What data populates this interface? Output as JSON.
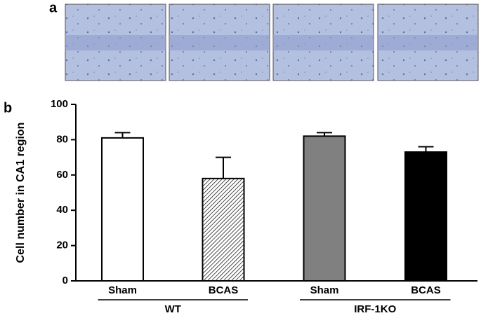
{
  "panel_labels": [
    "a",
    "b"
  ],
  "chart_data": {
    "type": "bar",
    "ylabel": "Cell number in CA1 region",
    "categories": [
      "Sham",
      "BCAS",
      "Sham",
      "BCAS"
    ],
    "groups": [
      {
        "name": "WT",
        "categories": [
          0,
          1
        ]
      },
      {
        "name": "IRF-1KO",
        "categories": [
          2,
          3
        ]
      }
    ],
    "values": [
      81,
      58,
      82,
      73
    ],
    "errors": [
      3,
      12,
      2,
      3
    ],
    "colors": [
      "#ffffff",
      "#ffffff",
      "#808080",
      "#000000"
    ],
    "hatch": [
      false,
      true,
      false,
      false
    ],
    "ylim": [
      0,
      100
    ],
    "yticks": [
      0,
      20,
      40,
      60,
      80,
      100
    ]
  }
}
